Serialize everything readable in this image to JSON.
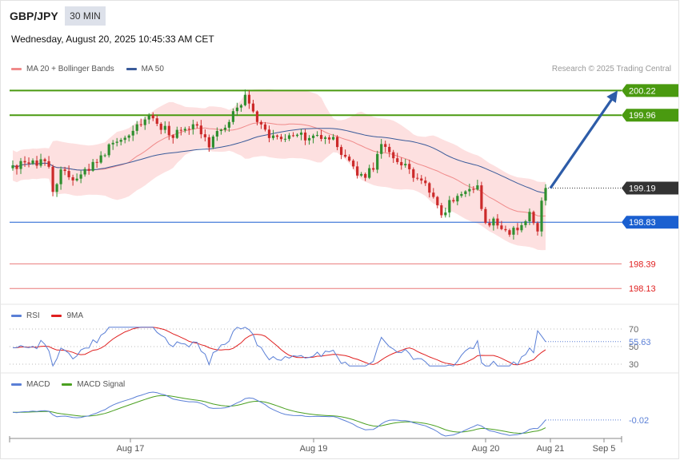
{
  "header": {
    "pair": "GBP/JPY",
    "interval": "30 MIN",
    "datetime": "Wednesday, August 20, 2025 10:45:33 AM CET",
    "credit": "Research © 2025 Trading Central"
  },
  "legends": {
    "price": [
      {
        "label": "MA 20 + Bollinger Bands",
        "color": "#f08a8a"
      },
      {
        "label": "MA 50",
        "color": "#3a5b9a"
      }
    ],
    "rsi": [
      {
        "label": "RSI",
        "color": "#5a7fd6"
      },
      {
        "label": "9MA",
        "color": "#e02020"
      }
    ],
    "macd": [
      {
        "label": "MACD",
        "color": "#5a7fd6"
      },
      {
        "label": "MACD Signal",
        "color": "#4aa020"
      }
    ]
  },
  "colors": {
    "resistance": "#4a9a10",
    "current": "#333333",
    "pivot": "#1a5fd0",
    "support": "#e04040",
    "up_candle": "#2f8f2f",
    "down_candle": "#cc2a2a",
    "band_fill": "#fde0e0",
    "arrow": "#2d5ca8"
  },
  "chart_data": {
    "type": "candlestick",
    "price_range": [
      197.98,
      200.35
    ],
    "levels": [
      {
        "value": 200.22,
        "label": "200.22",
        "kind": "resistance"
      },
      {
        "value": 199.96,
        "label": "199.96",
        "kind": "resistance"
      },
      {
        "value": 199.19,
        "label": "199.19",
        "kind": "current"
      },
      {
        "value": 198.83,
        "label": "198.83",
        "kind": "pivot"
      },
      {
        "value": 198.39,
        "label": "198.39",
        "kind": "support"
      },
      {
        "value": 198.13,
        "label": "198.13",
        "kind": "support"
      }
    ],
    "forecast_arrow": {
      "from": 199.19,
      "to": 200.22
    },
    "x_ticks": [
      "Aug 17",
      "Aug 19",
      "Aug 20",
      "Aug 21",
      "Sep 5"
    ],
    "candle_count": 134,
    "path_points": [
      [
        0,
        199.43
      ],
      [
        9,
        199.46
      ],
      [
        10,
        199.15
      ],
      [
        12,
        199.4
      ],
      [
        16,
        199.27
      ],
      [
        20,
        199.46
      ],
      [
        26,
        199.7
      ],
      [
        34,
        199.92
      ],
      [
        40,
        199.76
      ],
      [
        46,
        199.86
      ],
      [
        49,
        199.64
      ],
      [
        58,
        200.15
      ],
      [
        62,
        199.86
      ],
      [
        64,
        199.75
      ],
      [
        75,
        199.73
      ],
      [
        80,
        199.69
      ],
      [
        82,
        199.55
      ],
      [
        87,
        199.3
      ],
      [
        90,
        199.42
      ],
      [
        92,
        199.65
      ],
      [
        103,
        199.2
      ],
      [
        107,
        198.91
      ],
      [
        110,
        199.09
      ],
      [
        113,
        199.2
      ],
      [
        116,
        199.22
      ],
      [
        118,
        198.8
      ],
      [
        120,
        198.85
      ],
      [
        123,
        198.71
      ],
      [
        126,
        198.77
      ],
      [
        129,
        198.9
      ],
      [
        131,
        198.7
      ],
      [
        132,
        199.07
      ],
      [
        133,
        199.19
      ]
    ],
    "bollinger_width": [
      0.16,
      0.36
    ],
    "rsi": {
      "current": 55.63,
      "current_label": "55.63",
      "levels": [
        70,
        30
      ],
      "level_labels": [
        "70",
        "50",
        "30"
      ],
      "range": [
        20,
        80
      ]
    },
    "macd": {
      "current": -0.02,
      "current_label": "-0.02"
    }
  }
}
